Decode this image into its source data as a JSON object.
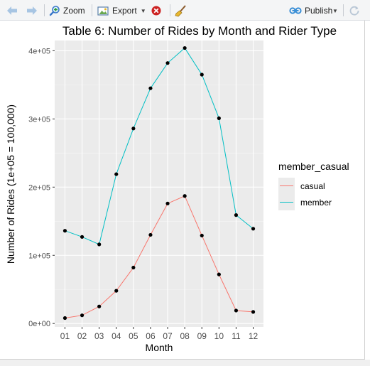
{
  "toolbar": {
    "back_icon": "arrow-left-icon",
    "forward_icon": "arrow-right-icon",
    "zoom_label": "Zoom",
    "export_label": "Export",
    "remove_icon": "remove-plot-icon",
    "clear_icon": "broom-icon",
    "publish_label": "Publish",
    "refresh_icon": "refresh-icon",
    "colors": {
      "accent": "#3a8fd6",
      "remove": "#cc2222"
    }
  },
  "chart_data": {
    "type": "line",
    "title": "Table 6: Number of Rides by Month and Rider Type",
    "xlabel": "Month",
    "ylabel": "Number of Rides (1e+05 = 100,000)",
    "categories": [
      "01",
      "02",
      "03",
      "04",
      "05",
      "06",
      "07",
      "08",
      "09",
      "10",
      "11",
      "12"
    ],
    "ylim": [
      -5000,
      415000
    ],
    "yticks": [
      0,
      100000,
      200000,
      300000,
      400000
    ],
    "ytick_labels": [
      "0e+00",
      "1e+05",
      "2e+05",
      "3e+05",
      "4e+05"
    ],
    "legend": {
      "title": "member_casual",
      "placement": "right"
    },
    "series": [
      {
        "name": "casual",
        "color": "#f8766d",
        "values": [
          8000,
          12000,
          25000,
          48000,
          82000,
          130000,
          176000,
          187000,
          129000,
          72000,
          19000,
          17000
        ]
      },
      {
        "name": "member",
        "color": "#00bfc4",
        "values": [
          136000,
          127000,
          116000,
          219000,
          286000,
          345000,
          382000,
          404000,
          365000,
          301000,
          159000,
          139000
        ]
      }
    ],
    "grid": true,
    "panel_background": "#ebebeb"
  }
}
